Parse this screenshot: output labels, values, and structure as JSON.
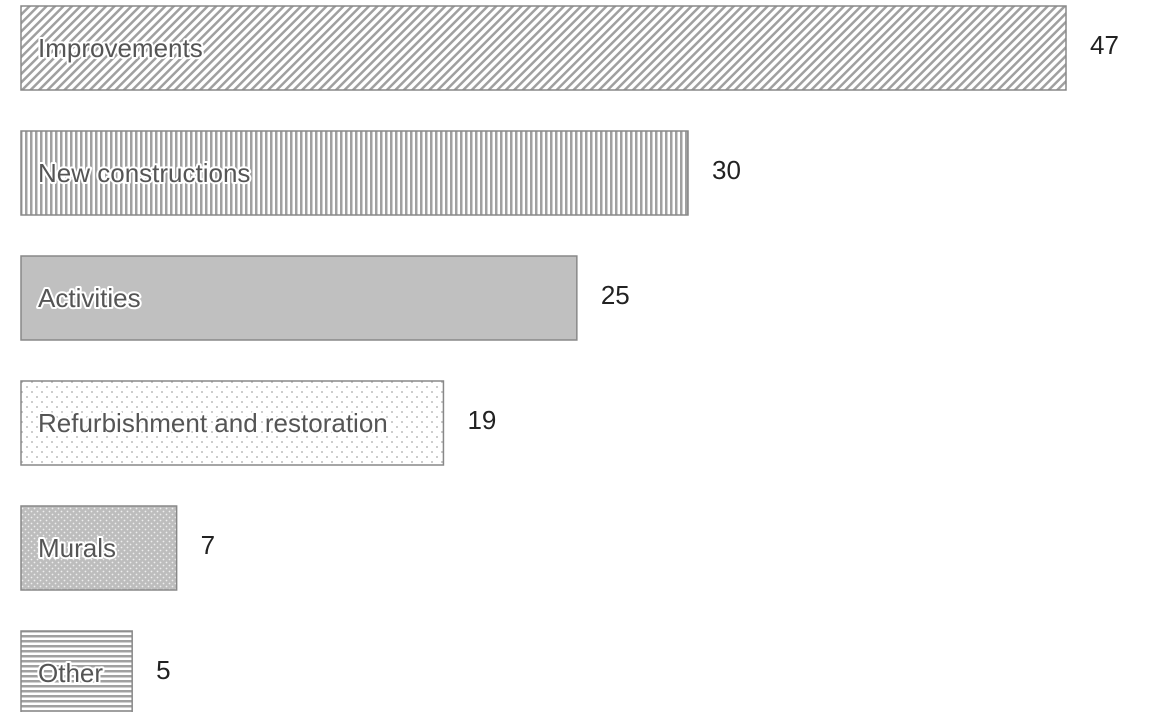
{
  "chart_data": {
    "type": "bar",
    "orientation": "horizontal",
    "categories": [
      "Improvements",
      "New constructions",
      "Activities",
      "Refurbishment and restoration",
      "Murals",
      "Other"
    ],
    "values": [
      47,
      30,
      25,
      19,
      7,
      5
    ],
    "patterns": [
      "diagonal",
      "vertical",
      "solid",
      "dots",
      "dense-dots",
      "horizontal"
    ],
    "color": "#a0a0a0"
  }
}
